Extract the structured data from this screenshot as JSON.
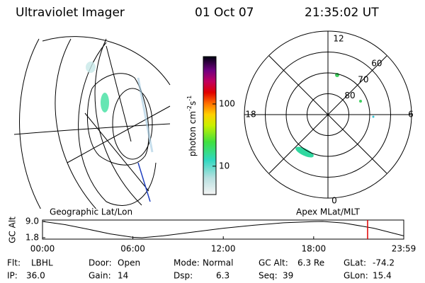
{
  "header": {
    "title": "Ultraviolet Imager",
    "date": "01 Oct 07",
    "time": "21:35:02 UT"
  },
  "colorbar": {
    "label": [
      "photon cm",
      "-2",
      "s",
      "-1"
    ],
    "clim": [
      3.5,
      577
    ],
    "log": true,
    "ticks": [
      10,
      100
    ]
  },
  "polar": {
    "mlt_labels": {
      "top": "12",
      "left": "18",
      "right": "6",
      "bottom": "0"
    },
    "lat_labels": [
      60,
      70,
      80
    ]
  },
  "maps": {
    "left_label": "Geographic Lat/Lon",
    "right_label": "Apex MLat/MLT"
  },
  "altitude": {
    "axis_label": "GC Alt",
    "yticks": [
      {
        "value": 9.0,
        "label": "9.0"
      },
      {
        "value": 1.8,
        "label": "1.8"
      }
    ],
    "ylim": [
      1.8,
      9.0
    ],
    "xlim": [
      0,
      23.98
    ],
    "xticks": [
      {
        "value": 0,
        "label": "00:00"
      },
      {
        "value": 6,
        "label": "06:00"
      },
      {
        "value": 12,
        "label": "12:00"
      },
      {
        "value": 18,
        "label": "18:00"
      },
      {
        "value": 23.98,
        "label": "23:59"
      }
    ],
    "x": [
      0,
      1.5,
      3,
      4.5,
      6,
      6.6,
      8,
      10,
      12,
      14,
      16,
      18,
      18.6,
      20,
      22,
      23.98
    ],
    "values": [
      9.0,
      7.6,
      5.6,
      3.5,
      2.0,
      1.8,
      2.6,
      4.3,
      6.0,
      7.3,
      8.4,
      8.95,
      9.0,
      8.3,
      6.0,
      2.6
    ],
    "marker": 21.58,
    "marker_color": "#e00000"
  },
  "footer": [
    [
      {
        "label": "Flt:",
        "value": "LBHL"
      },
      {
        "label": "IP:",
        "value": "36.0"
      }
    ],
    [
      {
        "label": "Door:",
        "value": "Open"
      },
      {
        "label": "Gain:",
        "value": "14"
      }
    ],
    [
      {
        "label": "Mode:",
        "value": "Normal"
      },
      {
        "label": "Dsp:",
        "value": "6.3"
      }
    ],
    [
      {
        "label": "GC Alt:",
        "value": "6.3 Re"
      },
      {
        "label": "Seq:",
        "value": "39"
      }
    ],
    [
      {
        "label": "GLat:",
        "value": "-74.2"
      },
      {
        "label": "GLon:",
        "value": "15.4"
      }
    ]
  ]
}
